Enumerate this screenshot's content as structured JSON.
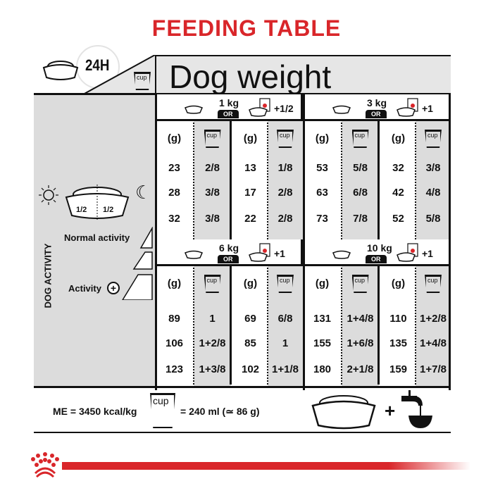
{
  "title": "FEEDING TABLE",
  "header": {
    "period": "24H",
    "dog_weight": "Dog weight",
    "cup_label": "cup"
  },
  "left_panel": {
    "halves": [
      "1/2",
      "1/2"
    ],
    "dog_activity": "DOG ACTIVITY",
    "normal_activity": "Normal activity",
    "activity": "Activity"
  },
  "or_label": "OR",
  "col_headers": {
    "grams": "(g)",
    "cup": "cup"
  },
  "blocks": [
    {
      "weight": "1 kg",
      "wet_addition": "+1/2",
      "dry": {
        "g": [
          "23",
          "28",
          "32"
        ],
        "cup": [
          "2/8",
          "3/8",
          "3/8"
        ]
      },
      "mixed": {
        "g": [
          "13",
          "17",
          "22"
        ],
        "cup": [
          "1/8",
          "2/8",
          "2/8"
        ]
      }
    },
    {
      "weight": "3 kg",
      "wet_addition": "+1",
      "dry": {
        "g": [
          "53",
          "63",
          "73"
        ],
        "cup": [
          "5/8",
          "6/8",
          "7/8"
        ]
      },
      "mixed": {
        "g": [
          "32",
          "42",
          "52"
        ],
        "cup": [
          "3/8",
          "4/8",
          "5/8"
        ]
      }
    },
    {
      "weight": "6 kg",
      "wet_addition": "+1",
      "dry": {
        "g": [
          "89",
          "106",
          "123"
        ],
        "cup": [
          "1",
          "1+2/8",
          "1+3/8"
        ]
      },
      "mixed": {
        "g": [
          "69",
          "85",
          "102"
        ],
        "cup": [
          "6/8",
          "1",
          "1+1/8"
        ]
      }
    },
    {
      "weight": "10 kg",
      "wet_addition": "+1",
      "dry": {
        "g": [
          "131",
          "155",
          "180"
        ],
        "cup": [
          "1+4/8",
          "1+6/8",
          "2+1/8"
        ]
      },
      "mixed": {
        "g": [
          "110",
          "135",
          "159"
        ],
        "cup": [
          "1+2/8",
          "1+4/8",
          "1+7/8"
        ]
      }
    }
  ],
  "footer": {
    "energy": "ME = 3450 kcal/kg",
    "cup_label": "cup",
    "cup_equiv": "= 240 ml (≃ 86 g)",
    "plus": "+"
  },
  "colors": {
    "brand_red": "#d9262a",
    "panel_grey": "#dcdcdc"
  }
}
